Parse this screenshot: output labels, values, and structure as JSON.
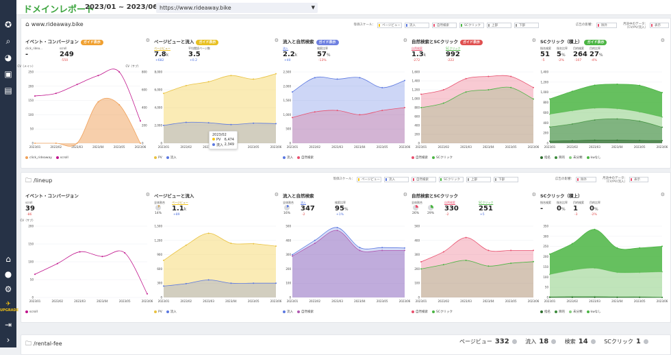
{
  "app": {
    "title": "ドメインレポート",
    "date_range": "2023/01 ~ 2023/06",
    "url": "https://www.rideaway.bike",
    "upgrade_label": "UPGRADE"
  },
  "colors": {
    "pv": "#f5c518",
    "inflow": "#5b78e0",
    "organic": "#e8506e",
    "sc": "#4bb543",
    "scroll": "#c0148c",
    "click": "#f0a058",
    "sidebar": "#263246",
    "title": "#3da53f"
  },
  "controls": {
    "scale_label": "等価スケール：",
    "scale_items": [
      {
        "label": "ページビュー",
        "color": "#f5c518"
      },
      {
        "label": "流入",
        "color": "#5b78e0"
      },
      {
        "label": "自然検索",
        "color": "#e8506e"
      },
      {
        "label": "SCクリック",
        "color": "#4bb543"
      },
      {
        "label": "上部",
        "color": "#999999"
      },
      {
        "label": "下部",
        "color": "#999999"
      }
    ],
    "ad_label": "広告の影響：",
    "ad_value": "除外",
    "period_label": "月途中のデータ：",
    "period_sub": "（CV/PV/流入）",
    "period_value": "表示"
  },
  "months": [
    "2023/01",
    "2023/02",
    "2023/03",
    "2023/04",
    "2023/05",
    "2023/06"
  ],
  "panels": [
    {
      "path": "www.rideaway.bike",
      "cards": [
        {
          "title": "イベント・コンバージョン",
          "badge": "ガイド表示",
          "badge_color": "#f0a030",
          "metrics": [
            {
              "label": "click_ridea...",
              "value": "-",
              "delta": "",
              "dc": "red"
            },
            {
              "label": "scroll",
              "value": "249",
              "delta": "-550",
              "dc": "red"
            }
          ],
          "axis_left": "CV（メイン）",
          "axis_right": "CV（サブ）",
          "yl": [
            "0",
            "50",
            "100",
            "150",
            "200",
            "250"
          ],
          "yr": [
            "0",
            "200",
            "400",
            "600",
            "800"
          ],
          "series": [
            {
              "name": "click_rideaway",
              "color": "#f0a058",
              "fill": "rgba(240,160,88,0.5)",
              "ymax": 250,
              "values": [
                0,
                0,
                0,
                145,
                135,
                0
              ]
            },
            {
              "name": "scroll",
              "color": "#c0148c",
              "fill": "",
              "ymax": 800,
              "values": [
                530,
                560,
                660,
                760,
                800,
                250
              ]
            }
          ],
          "legend": [
            "click_rideaway",
            "scroll"
          ]
        },
        {
          "title": "ページビューと流入",
          "badge": "ガイド表示",
          "badge_color": "#e8c020",
          "metrics": [
            {
              "label": "ページビュー",
              "value": "7.8",
              "unit": "k",
              "delta": "+682",
              "dc": "blue",
              "ul": "#f5c518"
            },
            {
              "label": "平均閲読ページ数",
              "value": "3.5",
              "delta": "+0.2",
              "dc": "blue"
            }
          ],
          "yl": [
            "0",
            "2,000",
            "4,000",
            "6,000",
            "8,000"
          ],
          "ylmax": 8000,
          "series": [
            {
              "name": "PV",
              "color": "#e9c240",
              "fill": "rgba(245,210,90,0.45)",
              "values": [
                5600,
                6474,
                6900,
                7600,
                7200,
                7800
              ]
            },
            {
              "name": "流入",
              "color": "#5b78e0",
              "fill": "rgba(91,120,224,0.25)",
              "values": [
                2000,
                2349,
                2300,
                2100,
                2250,
                2200
              ]
            }
          ],
          "tooltip": {
            "month": "2023/02",
            "rows": [
              {
                "name": "PV",
                "value": "6,474",
                "color": "#f5c518"
              },
              {
                "name": "流入",
                "value": "2,349",
                "color": "#5b78e0"
              }
            ]
          },
          "legend": [
            "PV",
            "流入"
          ]
        },
        {
          "title": "流入と自然検索",
          "badge": "ガイド表示",
          "badge_color": "#6d7fe0",
          "metrics": [
            {
              "label": "流入",
              "value": "2.2",
              "unit": "k",
              "delta": "+40",
              "dc": "blue",
              "ul": "#5b78e0"
            },
            {
              "label": "検索比率",
              "value": "57",
              "unit": "%",
              "delta": "-13%",
              "dc": "red"
            }
          ],
          "yl": [
            "0",
            "500",
            "1,000",
            "1,500",
            "2,000",
            "2,500"
          ],
          "ylmax": 2500,
          "series": [
            {
              "name": "流入",
              "color": "#5b78e0",
              "fill": "rgba(91,120,224,0.3)",
              "values": [
                1800,
                2300,
                2250,
                2300,
                1950,
                2200
              ]
            },
            {
              "name": "自然検索",
              "color": "#e8506e",
              "fill": "rgba(232,80,110,0.25)",
              "values": [
                900,
                1100,
                1150,
                1000,
                1150,
                1250
              ]
            }
          ],
          "legend": [
            "流入",
            "自然検索"
          ]
        },
        {
          "title": "自然検索とSCクリック",
          "badge": "ガイド表示",
          "badge_color": "#e05050",
          "metrics": [
            {
              "label": "自然検索",
              "value": "1.3",
              "unit": "k",
              "delta": "-272",
              "dc": "red",
              "ul": "#e8506e"
            },
            {
              "label": "SCクリック",
              "value": "992",
              "delta": "-222",
              "dc": "red",
              "ul": "#4bb543"
            }
          ],
          "yl": [
            "0",
            "200",
            "400",
            "600",
            "800",
            "1,000",
            "1,200",
            "1,400",
            "1,600"
          ],
          "ylmax": 1600,
          "series": [
            {
              "name": "自然検索",
              "color": "#e8506e",
              "fill": "rgba(232,80,110,0.3)",
              "values": [
                1100,
                1200,
                1450,
                1500,
                1500,
                1250
              ]
            },
            {
              "name": "SCクリック",
              "color": "#4bb543",
              "fill": "rgba(75,181,67,0.2)",
              "values": [
                800,
                900,
                1150,
                1200,
                1250,
                992
              ]
            }
          ],
          "legend": [
            "自然検索",
            "SCクリック"
          ]
        },
        {
          "title": "SCクリック（積上）",
          "badge": "ガイド表示",
          "badge_color": "#4bb543",
          "metrics": [
            {
              "label": "指名検索",
              "value": "51",
              "delta": "-5",
              "dc": "red"
            },
            {
              "label": "指名比率",
              "value": "5",
              "unit": "%",
              "delta": "-2%",
              "dc": "red"
            },
            {
              "label": "目的検索",
              "value": "264",
              "delta": "-107",
              "dc": "red"
            },
            {
              "label": "目的比率",
              "value": "27",
              "unit": "%",
              "delta": "-4%",
              "dc": "red"
            }
          ],
          "yl": [
            "0",
            "200",
            "400",
            "600",
            "800",
            "1,000",
            "1,200",
            "1,400"
          ],
          "ylmax": 1400,
          "stacked": true,
          "series": [
            {
              "name": "指名",
              "color": "#2f6e2f",
              "fill": "rgba(47,110,47,0.8)",
              "values": [
                40,
                50,
                60,
                60,
                55,
                51
              ]
            },
            {
              "name": "目的",
              "color": "#3a8a3a",
              "fill": "rgba(60,140,60,0.65)",
              "values": [
                280,
                330,
                400,
                420,
                380,
                264
              ]
            },
            {
              "name": "未分類",
              "color": "#88cc80",
              "fill": "rgba(150,210,140,0.6)",
              "values": [
                250,
                260,
                230,
                200,
                180,
                200
              ]
            },
            {
              "name": "kwなし",
              "color": "#4bb543",
              "fill": "rgba(75,181,67,0.85)",
              "values": [
                300,
                380,
                450,
                480,
                520,
                480
              ]
            }
          ],
          "legend": [
            "指名",
            "目的",
            "未分類",
            "kwなし"
          ]
        }
      ]
    },
    {
      "path": "/lineup",
      "cards": [
        {
          "title": "イベント・コンバージョン",
          "metrics": [
            {
              "label": "scroll",
              "value": "39",
              "delta": "-86",
              "dc": "red"
            }
          ],
          "axis_left": "CV（サブ）",
          "yl": [
            "0",
            "50",
            "100",
            "150",
            "200"
          ],
          "ylmax": 200,
          "series": [
            {
              "name": "scroll",
              "color": "#c0148c",
              "fill": "",
              "values": [
                65,
                95,
                128,
                115,
                125,
                10
              ]
            }
          ],
          "legend": [
            "scroll"
          ]
        },
        {
          "title": "ページビューと流入",
          "pies": [
            {
              "label": "全体割合",
              "pct": "14%",
              "color": "#d0a860"
            }
          ],
          "metrics": [
            {
              "label": "ページビュー",
              "value": "1.1",
              "unit": "k",
              "delta": "+89",
              "dc": "blue",
              "ul": "#f5c518"
            }
          ],
          "yl": [
            "0",
            "300",
            "600",
            "900",
            "1,200",
            "1,500"
          ],
          "ylmax": 1500,
          "series": [
            {
              "name": "PV",
              "color": "#e9c240",
              "fill": "rgba(245,210,90,0.45)",
              "values": [
                780,
                1100,
                1350,
                1140,
                1130,
                1080
              ]
            },
            {
              "name": "流入",
              "color": "#5b78e0",
              "fill": "rgba(91,120,224,0.25)",
              "values": [
                240,
                290,
                370,
                300,
                300,
                300
              ]
            }
          ],
          "legend": [
            "PV",
            "流入"
          ]
        },
        {
          "title": "流入と自然検索",
          "pies": [
            {
              "label": "全体割合",
              "pct": "16%",
              "color": "#5b78e0"
            }
          ],
          "metrics": [
            {
              "label": "流入",
              "value": "347",
              "delta": "-2",
              "dc": "red",
              "ul": "#5b78e0"
            },
            {
              "label": "検索比率",
              "value": "95",
              "unit": "%",
              "delta": "+1%",
              "dc": "blue"
            }
          ],
          "yl": [
            "0",
            "100",
            "200",
            "300",
            "400",
            "500"
          ],
          "ylmax": 500,
          "series": [
            {
              "name": "流入",
              "color": "#5b78e0",
              "fill": "rgba(91,120,224,0.25)",
              "values": [
                300,
                400,
                490,
                350,
                350,
                347
              ]
            },
            {
              "name": "自然検索",
              "color": "#b058b0",
              "fill": "rgba(160,100,180,0.4)",
              "values": [
                290,
                380,
                470,
                330,
                330,
                330
              ]
            }
          ],
          "legend": [
            "流入",
            "自然検索"
          ]
        },
        {
          "title": "自然検索とSCクリック",
          "pies": [
            {
              "label": "全体割合",
              "pct": "26%",
              "color": "#e8506e"
            },
            {
              "label": "",
              "pct": "29%",
              "color": "#4bb543"
            }
          ],
          "metrics": [
            {
              "label": "自然検索",
              "value": "330",
              "delta": "-2",
              "dc": "red",
              "ul": "#e8506e"
            },
            {
              "label": "SCクリック",
              "value": "251",
              "delta": "+5",
              "dc": "blue",
              "ul": "#4bb543"
            }
          ],
          "yl": [
            "0",
            "100",
            "200",
            "300",
            "400",
            "500"
          ],
          "ylmax": 500,
          "series": [
            {
              "name": "自然検索",
              "color": "#e8506e",
              "fill": "rgba(232,80,110,0.3)",
              "values": [
                250,
                320,
                420,
                330,
                330,
                330
              ]
            },
            {
              "name": "SCクリック",
              "color": "#4bb543",
              "fill": "rgba(75,181,67,0.2)",
              "values": [
                200,
                230,
                260,
                220,
                240,
                251
              ]
            }
          ],
          "legend": [
            "自然検索",
            "SCクリック"
          ]
        },
        {
          "title": "SCクリック（積上）",
          "metrics": [
            {
              "label": "指名検索",
              "value": "-",
              "delta": "",
              "dc": "red"
            },
            {
              "label": "指名比率",
              "value": "0",
              "unit": "%",
              "delta": "",
              "dc": "red"
            },
            {
              "label": "目的検索",
              "value": "1",
              "delta": "-3",
              "dc": "red"
            },
            {
              "label": "目的比率",
              "value": "0",
              "unit": "%",
              "delta": "-2%",
              "dc": "red"
            }
          ],
          "yl": [
            "0",
            "50",
            "100",
            "150",
            "200",
            "250",
            "300",
            "350"
          ],
          "ylmax": 350,
          "stacked": true,
          "series": [
            {
              "name": "指名",
              "color": "#2f6e2f",
              "fill": "rgba(47,110,47,0.8)",
              "values": [
                0,
                0,
                0,
                0,
                0,
                0
              ]
            },
            {
              "name": "目的",
              "color": "#3a8a3a",
              "fill": "rgba(60,140,60,0.65)",
              "values": [
                3,
                4,
                4,
                3,
                3,
                1
              ]
            },
            {
              "name": "未分類",
              "color": "#88cc80",
              "fill": "rgba(150,210,140,0.6)",
              "values": [
                110,
                130,
                140,
                120,
                120,
                125
              ]
            },
            {
              "name": "kwなし",
              "color": "#4bb543",
              "fill": "rgba(75,181,67,0.85)",
              "values": [
                100,
                130,
                190,
                120,
                120,
                125
              ]
            }
          ],
          "legend": [
            "指名",
            "目的",
            "未分類",
            "kwなし"
          ]
        }
      ]
    }
  ],
  "bottom_panel": {
    "path": "/rental-fee",
    "stats": [
      {
        "label": "ページビュー",
        "value": "332"
      },
      {
        "label": "流入",
        "value": "18"
      },
      {
        "label": "検索",
        "value": "14"
      },
      {
        "label": "SCクリック",
        "value": "1"
      }
    ]
  }
}
